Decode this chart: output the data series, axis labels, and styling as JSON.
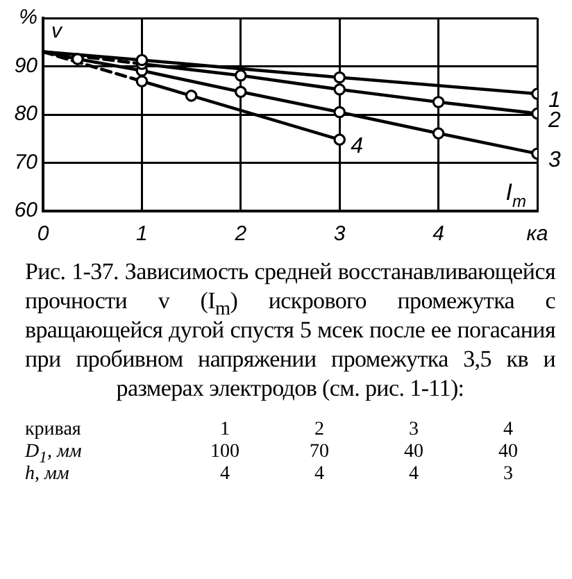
{
  "chart_data": {
    "type": "line",
    "xlabel": "I$_{m}$",
    "ylabel": "v",
    "xlim": [
      0,
      5
    ],
    "xticks": [
      0,
      1,
      2,
      3,
      4,
      {
        "value": 5,
        "label": "ка"
      }
    ],
    "ylim": [
      60,
      100
    ],
    "yticks": [
      60,
      70,
      80,
      90,
      {
        "value": 100,
        "label": "%"
      }
    ],
    "grid": true,
    "series": [
      {
        "name": "1",
        "color": "#000000",
        "marker": "circle",
        "line_style": "solid",
        "x": [
          1,
          3,
          5
        ],
        "values": [
          91.3,
          87.7,
          84.3
        ]
      },
      {
        "name": "2",
        "color": "#000000",
        "marker": "circle",
        "line_style": "solid",
        "x": [
          1,
          2,
          3,
          4,
          5
        ],
        "values": [
          90.5,
          88.1,
          85.2,
          82.6,
          80.2
        ]
      },
      {
        "name": "3",
        "color": "#000000",
        "marker": "circle",
        "line_style": "solid",
        "x": [
          0.35,
          1,
          2,
          3,
          4,
          5
        ],
        "values": [
          91.5,
          89.1,
          84.7,
          80.5,
          76.1,
          71.9
        ]
      },
      {
        "name": "4",
        "color": "#000000",
        "marker": "circle",
        "line_style": "solid",
        "x": [
          1,
          1.5,
          3
        ],
        "values": [
          86.9,
          83.9,
          74.8
        ]
      },
      {
        "color": "#000000",
        "marker": "none",
        "line_style": "solid",
        "x": [
          0,
          1
        ],
        "values": [
          93,
          91.3
        ]
      },
      {
        "color": "#000000",
        "marker": "none",
        "line_style": "dashed",
        "x": [
          0,
          1
        ],
        "values": [
          93,
          90.5
        ]
      },
      {
        "color": "#000000",
        "marker": "none",
        "line_style": "solid",
        "x": [
          0,
          0.35
        ],
        "values": [
          93,
          91.5
        ]
      },
      {
        "color": "#000000",
        "marker": "none",
        "line_style": "dashed",
        "x": [
          0,
          1
        ],
        "values": [
          93,
          86.9
        ]
      }
    ],
    "annotations": [
      "Рис. 1-37. Зависимость средней восстанавливающейся прочности v (I$_{m}$) искрового промежутка с вращающейся дугой спустя 5 мсек после ее погасания при пробивном напряжении промежутка 3,5 кв и размерах электродов (см. рис. 1-11):",
      "кривая\t1\t2\t3\t4",
      "D$_{1}$, мм\t100\t70\t40\t40",
      "h, мм\t4\t4\t4\t3"
    ]
  }
}
